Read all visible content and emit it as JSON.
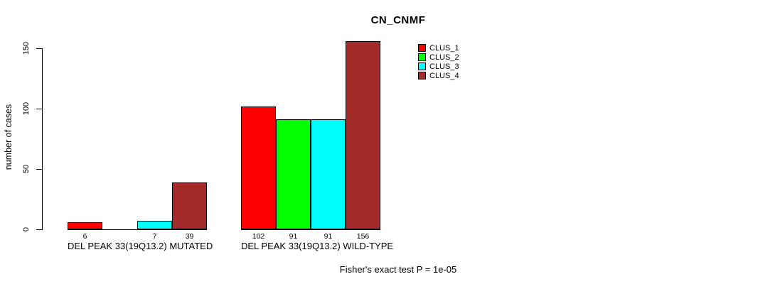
{
  "title": "CN_CNMF",
  "y_axis": {
    "label": "number of cases",
    "tick_labels": [
      "0",
      "50",
      "100",
      "150"
    ]
  },
  "legend": {
    "items": [
      {
        "label": "CLUS_1",
        "color": "#ff0000"
      },
      {
        "label": "CLUS_2",
        "color": "#00ff00"
      },
      {
        "label": "CLUS_3",
        "color": "#00ffff"
      },
      {
        "label": "CLUS_4",
        "color": "#a52a2a"
      }
    ]
  },
  "footer": "Fisher's exact test P = 1e-05",
  "chart_data": {
    "type": "bar",
    "title": "CN_CNMF",
    "xlabel": "",
    "ylabel": "number of cases",
    "ylim": [
      0,
      160
    ],
    "yticks": [
      0,
      50,
      100,
      150
    ],
    "grid": false,
    "legend_position": "top-right",
    "categories": [
      "DEL PEAK 33(19Q13.2) MUTATED",
      "DEL PEAK 33(19Q13.2) WILD-TYPE"
    ],
    "series": [
      {
        "name": "CLUS_1",
        "color": "#ff0000",
        "values": [
          6,
          102
        ]
      },
      {
        "name": "CLUS_2",
        "color": "#00ff00",
        "values": [
          0,
          91
        ]
      },
      {
        "name": "CLUS_3",
        "color": "#00ffff",
        "values": [
          7,
          91
        ]
      },
      {
        "name": "CLUS_4",
        "color": "#a52a2a",
        "values": [
          39,
          156
        ]
      }
    ],
    "bar_value_labels": [
      [
        "6",
        "",
        "7",
        "39"
      ],
      [
        "102",
        "91",
        "91",
        "156"
      ]
    ],
    "annotation": "Fisher's exact test P = 1e-05"
  }
}
